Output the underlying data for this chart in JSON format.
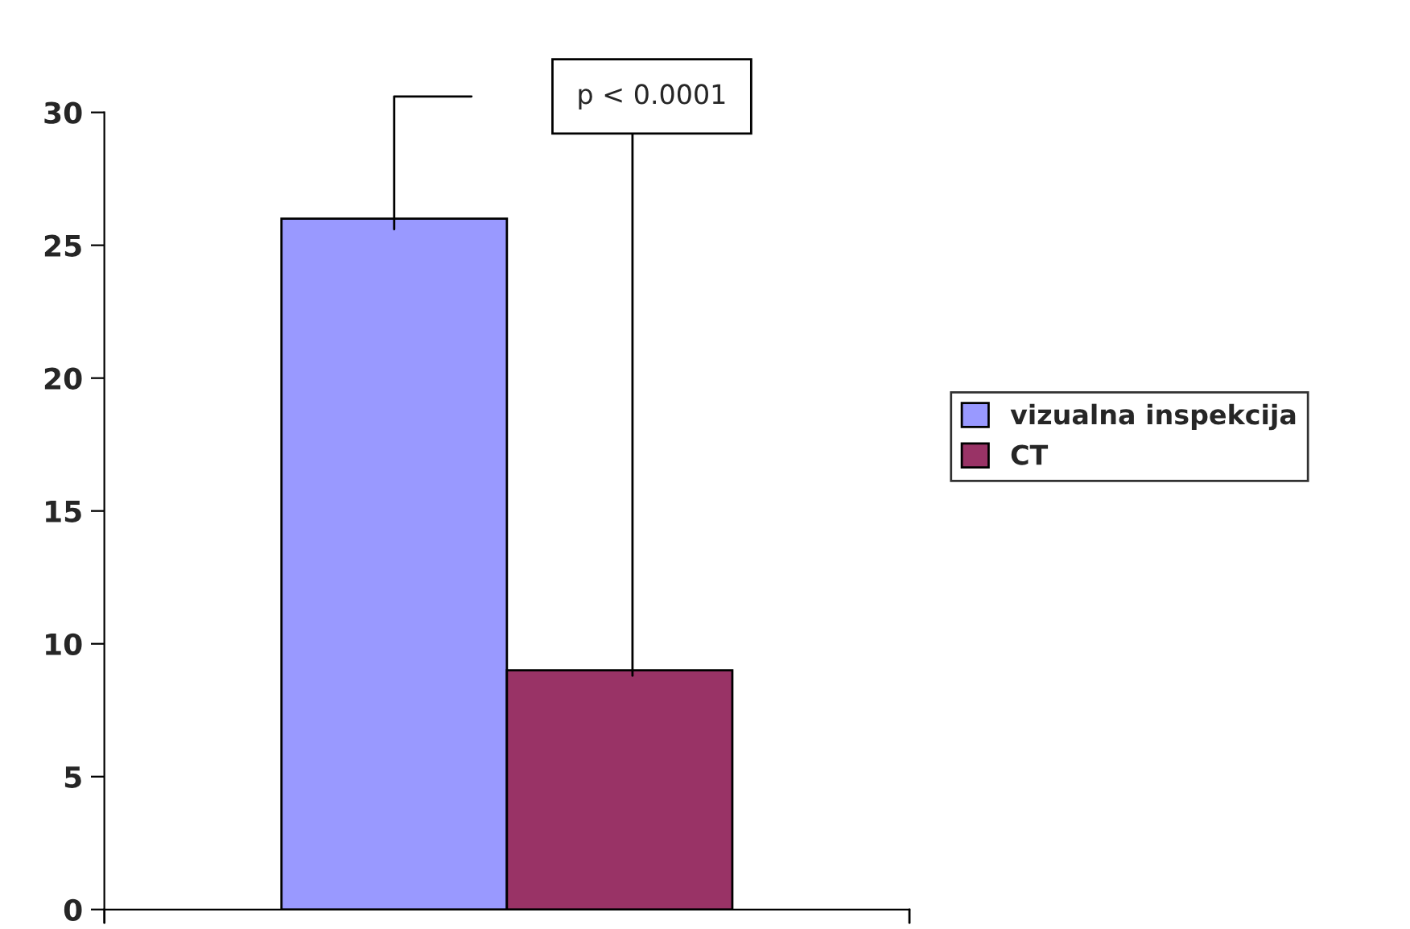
{
  "chart_data": {
    "type": "bar",
    "categories": [
      null
    ],
    "series": [
      {
        "name": "vizualna inspekcija",
        "color": "#9999ff",
        "values": [
          26
        ]
      },
      {
        "name": "CT",
        "color": "#993366",
        "values": [
          9
        ]
      }
    ],
    "ylim": [
      0,
      30
    ],
    "yticks": [
      0,
      5,
      10,
      15,
      20,
      25,
      30
    ],
    "annotations": [
      "p < 0.0001"
    ],
    "legend": "right",
    "grid": false
  }
}
